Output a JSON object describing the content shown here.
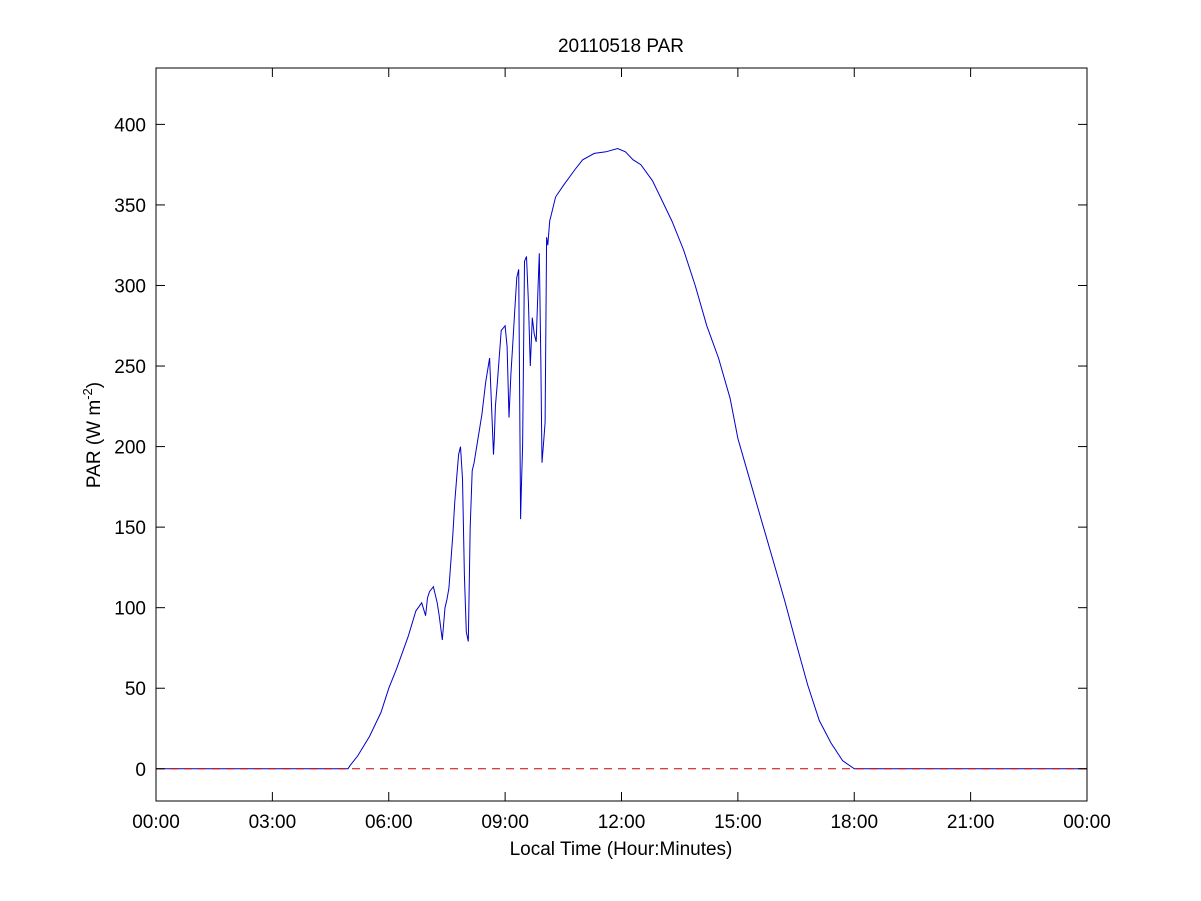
{
  "chart_data": {
    "type": "line",
    "title": "20110518 PAR",
    "xlabel": "Local Time (Hour:Minutes)",
    "ylabel": {
      "base": "PAR (W m",
      "superscript": "-2",
      "end": ")"
    },
    "x_unit": "hours",
    "xlim": [
      0,
      24
    ],
    "ylim": [
      -20,
      435
    ],
    "x_ticks": [
      {
        "value": 0,
        "label": "00:00"
      },
      {
        "value": 3,
        "label": "03:00"
      },
      {
        "value": 6,
        "label": "06:00"
      },
      {
        "value": 9,
        "label": "09:00"
      },
      {
        "value": 12,
        "label": "12:00"
      },
      {
        "value": 15,
        "label": "15:00"
      },
      {
        "value": 18,
        "label": "18:00"
      },
      {
        "value": 21,
        "label": "21:00"
      },
      {
        "value": 24,
        "label": "00:00"
      }
    ],
    "y_ticks": [
      {
        "value": 0,
        "label": "0"
      },
      {
        "value": 50,
        "label": "50"
      },
      {
        "value": 100,
        "label": "100"
      },
      {
        "value": 150,
        "label": "150"
      },
      {
        "value": 200,
        "label": "200"
      },
      {
        "value": 250,
        "label": "250"
      },
      {
        "value": 300,
        "label": "300"
      },
      {
        "value": 350,
        "label": "350"
      },
      {
        "value": 400,
        "label": "400"
      }
    ],
    "grid": false,
    "series": [
      {
        "color": "#0000cc",
        "style": "solid",
        "x": [
          0,
          4.95,
          5.0,
          5.2,
          5.5,
          5.8,
          6.0,
          6.2,
          6.5,
          6.7,
          6.85,
          6.95,
          7.0,
          7.05,
          7.15,
          7.25,
          7.3,
          7.38,
          7.45,
          7.5,
          7.55,
          7.65,
          7.7,
          7.75,
          7.8,
          7.85,
          7.9,
          7.95,
          8.0,
          8.05,
          8.1,
          8.15,
          8.2,
          8.3,
          8.4,
          8.5,
          8.6,
          8.7,
          8.72,
          8.75,
          8.8,
          8.9,
          9.0,
          9.05,
          9.1,
          9.15,
          9.2,
          9.25,
          9.3,
          9.35,
          9.4,
          9.42,
          9.45,
          9.5,
          9.55,
          9.6,
          9.65,
          9.7,
          9.75,
          9.8,
          9.85,
          9.88,
          9.92,
          9.95,
          10.0,
          10.03,
          10.07,
          10.1,
          10.15,
          10.2,
          10.3,
          10.5,
          10.8,
          11.0,
          11.3,
          11.6,
          11.9,
          12.1,
          12.3,
          12.5,
          12.8,
          13.0,
          13.3,
          13.6,
          13.9,
          14.2,
          14.5,
          14.8,
          15.0,
          15.3,
          15.6,
          15.9,
          16.2,
          16.5,
          16.8,
          17.1,
          17.4,
          17.7,
          18.0,
          18.3,
          18.5,
          18.7,
          18.9,
          19.0,
          19.2,
          24
        ],
        "y": [
          0,
          0,
          2,
          8,
          20,
          35,
          50,
          62,
          82,
          98,
          103,
          95,
          106,
          110,
          113,
          103,
          95,
          80,
          100,
          105,
          112,
          145,
          165,
          180,
          195,
          200,
          180,
          120,
          85,
          79,
          150,
          185,
          190,
          205,
          220,
          240,
          255,
          195,
          205,
          225,
          240,
          272,
          275,
          262,
          218,
          245,
          265,
          285,
          305,
          310,
          155,
          175,
          200,
          315,
          318,
          290,
          250,
          280,
          270,
          265,
          300,
          320,
          255,
          190,
          205,
          215,
          330,
          325,
          340,
          345,
          355,
          362,
          372,
          378,
          382,
          383,
          385,
          383,
          378,
          375,
          365,
          355,
          340,
          322,
          300,
          275,
          255,
          230,
          205,
          180,
          155,
          130,
          105,
          78,
          52,
          30,
          16,
          5,
          0,
          0,
          0,
          0,
          0,
          0,
          0,
          0
        ]
      },
      {
        "color": "#cc0000",
        "style": "dashed",
        "x": [
          0,
          24
        ],
        "y": [
          0,
          0
        ]
      }
    ]
  }
}
